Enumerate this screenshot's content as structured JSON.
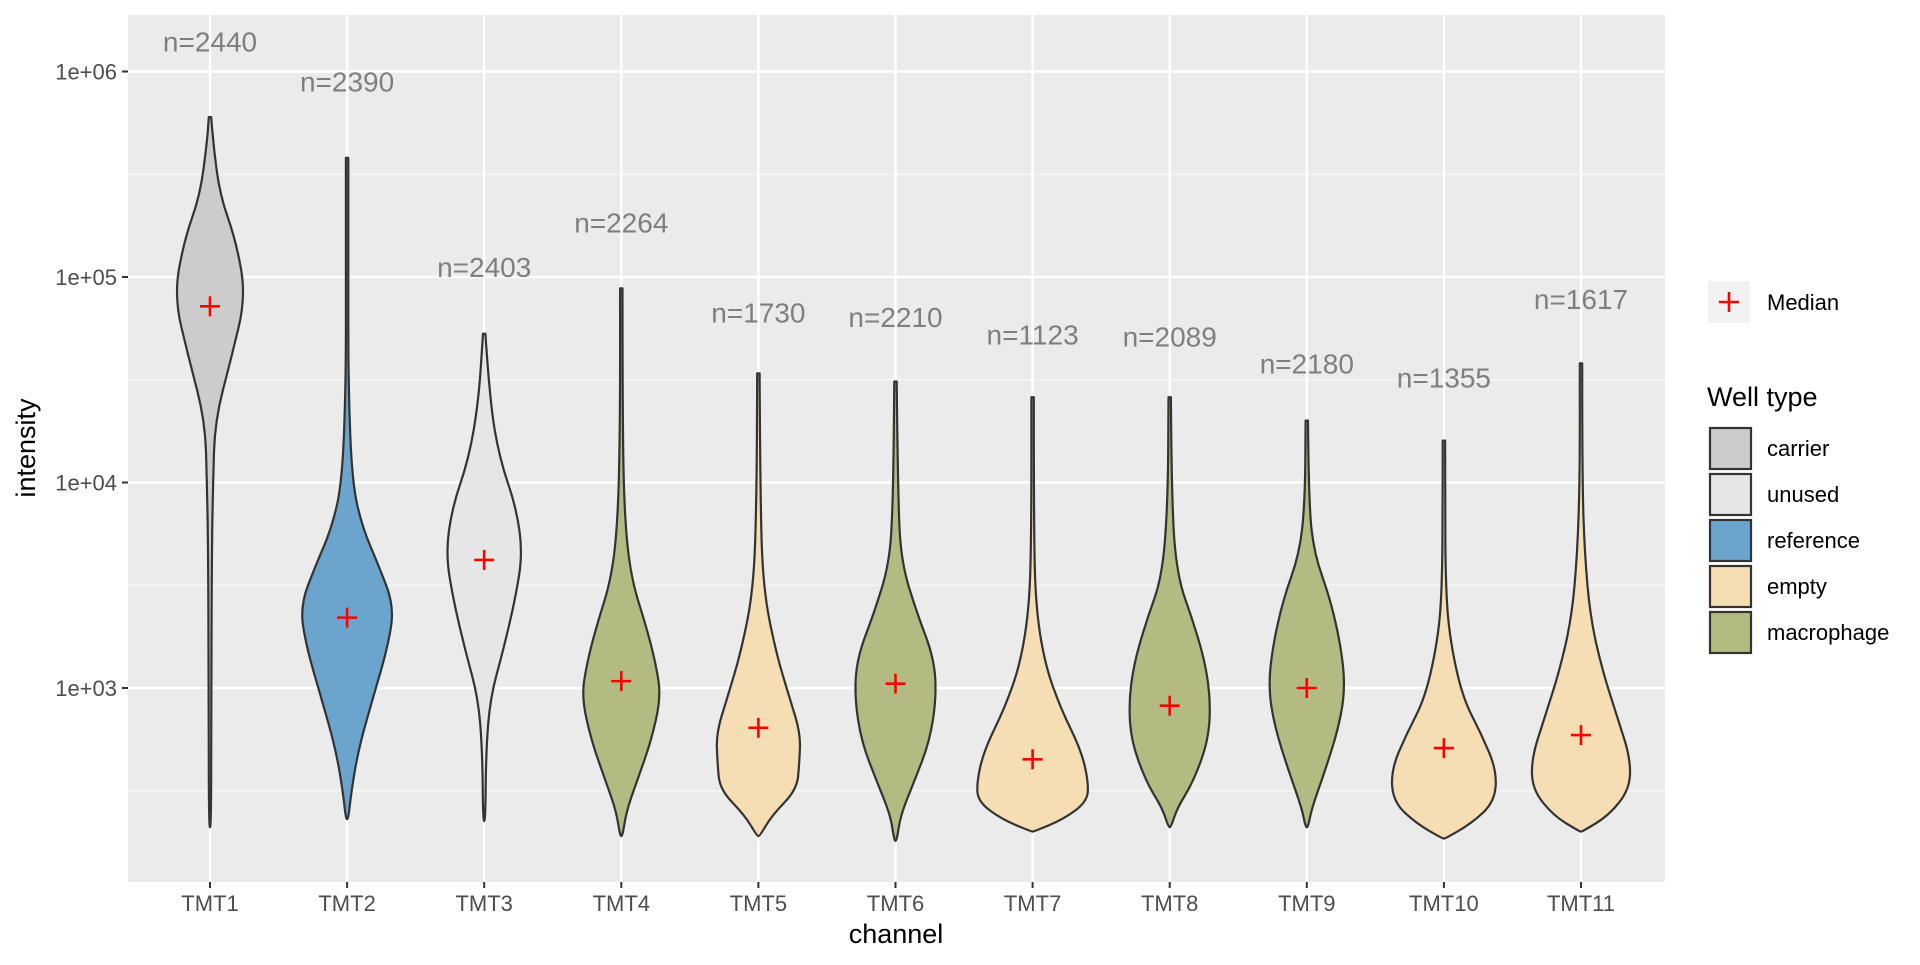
{
  "chart_data": {
    "type": "violin",
    "xlabel": "channel",
    "ylabel": "intensity",
    "y_scale": "log10",
    "ylim": [
      120,
      2000000
    ],
    "y_ticks": [
      1000,
      10000,
      100000,
      1000000
    ],
    "y_tick_labels": [
      "1e+03",
      "1e+04",
      "1e+05",
      "1e+06"
    ],
    "grid": true,
    "legend_position": "right",
    "median_marker": {
      "label": "Median",
      "symbol": "+",
      "color": "#ff0000"
    },
    "legend": {
      "title": "Well type",
      "entries": [
        {
          "name": "carrier",
          "color": "#cccccc"
        },
        {
          "name": "unused",
          "color": "#e6e6e6"
        },
        {
          "name": "reference",
          "color": "#6ba5cd"
        },
        {
          "name": "empty",
          "color": "#f5deb3"
        },
        {
          "name": "macrophage",
          "color": "#b3bb82"
        }
      ]
    },
    "categories": [
      "TMT1",
      "TMT2",
      "TMT3",
      "TMT4",
      "TMT5",
      "TMT6",
      "TMT7",
      "TMT8",
      "TMT9",
      "TMT10",
      "TMT11"
    ],
    "violins": [
      {
        "channel": "TMT1",
        "well_type": "carrier",
        "n_label": "n=2440",
        "n_y": 1250000,
        "median": 72000,
        "profile": [
          [
            210,
            0.01
          ],
          [
            1000,
            0.02
          ],
          [
            5000,
            0.03
          ],
          [
            10000,
            0.05
          ],
          [
            20000,
            0.08
          ],
          [
            40000,
            0.34
          ],
          [
            80000,
            0.58
          ],
          [
            150000,
            0.42
          ],
          [
            250000,
            0.16
          ],
          [
            450000,
            0.05
          ],
          [
            600000,
            0.0
          ]
        ]
      },
      {
        "channel": "TMT2",
        "well_type": "reference",
        "n_label": "n=2390",
        "n_y": 800000,
        "median": 2200,
        "profile": [
          [
            230,
            0.0
          ],
          [
            300,
            0.06
          ],
          [
            500,
            0.18
          ],
          [
            900,
            0.42
          ],
          [
            1600,
            0.66
          ],
          [
            2500,
            0.76
          ],
          [
            4000,
            0.5
          ],
          [
            6000,
            0.25
          ],
          [
            10000,
            0.08
          ],
          [
            30000,
            0.02
          ],
          [
            100000,
            0.01
          ],
          [
            380000,
            0.0
          ]
        ]
      },
      {
        "channel": "TMT3",
        "well_type": "unused",
        "n_label": "n=2403",
        "n_y": 100000,
        "median": 4200,
        "profile": [
          [
            225,
            0.0
          ],
          [
            500,
            0.03
          ],
          [
            900,
            0.1
          ],
          [
            1500,
            0.3
          ],
          [
            2700,
            0.5
          ],
          [
            4500,
            0.62
          ],
          [
            7500,
            0.52
          ],
          [
            13000,
            0.25
          ],
          [
            25000,
            0.09
          ],
          [
            53000,
            0.0
          ]
        ]
      },
      {
        "channel": "TMT4",
        "well_type": "macrophage",
        "n_label": "n=2264",
        "n_y": 165000,
        "median": 1080,
        "profile": [
          [
            190,
            0.0
          ],
          [
            250,
            0.08
          ],
          [
            350,
            0.25
          ],
          [
            550,
            0.48
          ],
          [
            900,
            0.64
          ],
          [
            1300,
            0.56
          ],
          [
            2000,
            0.4
          ],
          [
            3500,
            0.15
          ],
          [
            7000,
            0.05
          ],
          [
            20000,
            0.02
          ],
          [
            88000,
            0.0
          ]
        ]
      },
      {
        "channel": "TMT5",
        "well_type": "empty",
        "n_label": "n=1730",
        "n_y": 60000,
        "median": 640,
        "profile": [
          [
            190,
            0.0
          ],
          [
            240,
            0.22
          ],
          [
            320,
            0.62
          ],
          [
            430,
            0.66
          ],
          [
            600,
            0.68
          ],
          [
            900,
            0.5
          ],
          [
            1500,
            0.28
          ],
          [
            3000,
            0.08
          ],
          [
            8000,
            0.03
          ],
          [
            34000,
            0.0
          ]
        ]
      },
      {
        "channel": "TMT6",
        "well_type": "macrophage",
        "n_label": "n=2210",
        "n_y": 57000,
        "median": 1050,
        "profile": [
          [
            180,
            0.0
          ],
          [
            240,
            0.08
          ],
          [
            350,
            0.3
          ],
          [
            550,
            0.55
          ],
          [
            900,
            0.66
          ],
          [
            1400,
            0.62
          ],
          [
            2300,
            0.35
          ],
          [
            4000,
            0.1
          ],
          [
            8000,
            0.04
          ],
          [
            31000,
            0.0
          ]
        ]
      },
      {
        "channel": "TMT7",
        "well_type": "empty",
        "n_label": "n=1123",
        "n_y": 47000,
        "median": 450,
        "profile": [
          [
            200,
            0.0
          ],
          [
            230,
            0.5
          ],
          [
            280,
            0.88
          ],
          [
            350,
            0.9
          ],
          [
            500,
            0.78
          ],
          [
            800,
            0.45
          ],
          [
            1300,
            0.2
          ],
          [
            2500,
            0.05
          ],
          [
            6000,
            0.02
          ],
          [
            26000,
            0.0
          ]
        ]
      },
      {
        "channel": "TMT8",
        "well_type": "macrophage",
        "n_label": "n=2089",
        "n_y": 46000,
        "median": 820,
        "profile": [
          [
            210,
            0.0
          ],
          [
            260,
            0.12
          ],
          [
            350,
            0.38
          ],
          [
            550,
            0.62
          ],
          [
            850,
            0.66
          ],
          [
            1300,
            0.58
          ],
          [
            2100,
            0.38
          ],
          [
            3500,
            0.12
          ],
          [
            8000,
            0.03
          ],
          [
            26000,
            0.0
          ]
        ]
      },
      {
        "channel": "TMT9",
        "well_type": "macrophage",
        "n_label": "n=2180",
        "n_y": 34000,
        "median": 1000,
        "profile": [
          [
            210,
            0.0
          ],
          [
            260,
            0.08
          ],
          [
            400,
            0.3
          ],
          [
            650,
            0.52
          ],
          [
            1000,
            0.62
          ],
          [
            1600,
            0.55
          ],
          [
            2700,
            0.38
          ],
          [
            4500,
            0.12
          ],
          [
            8000,
            0.03
          ],
          [
            20000,
            0.0
          ]
        ]
      },
      {
        "channel": "TMT10",
        "well_type": "empty",
        "n_label": "n=1355",
        "n_y": 29000,
        "median": 510,
        "profile": [
          [
            185,
            0.0
          ],
          [
            220,
            0.45
          ],
          [
            280,
            0.82
          ],
          [
            400,
            0.85
          ],
          [
            600,
            0.6
          ],
          [
            900,
            0.3
          ],
          [
            1700,
            0.1
          ],
          [
            3000,
            0.03
          ],
          [
            8000,
            0.01
          ],
          [
            16000,
            0.0
          ]
        ]
      },
      {
        "channel": "TMT11",
        "well_type": "empty",
        "n_label": "n=1617",
        "n_y": 70000,
        "median": 590,
        "profile": [
          [
            200,
            0.0
          ],
          [
            240,
            0.45
          ],
          [
            320,
            0.78
          ],
          [
            450,
            0.8
          ],
          [
            700,
            0.6
          ],
          [
            1200,
            0.35
          ],
          [
            2200,
            0.15
          ],
          [
            4500,
            0.06
          ],
          [
            10000,
            0.02
          ],
          [
            38000,
            0.0
          ]
        ]
      }
    ]
  }
}
